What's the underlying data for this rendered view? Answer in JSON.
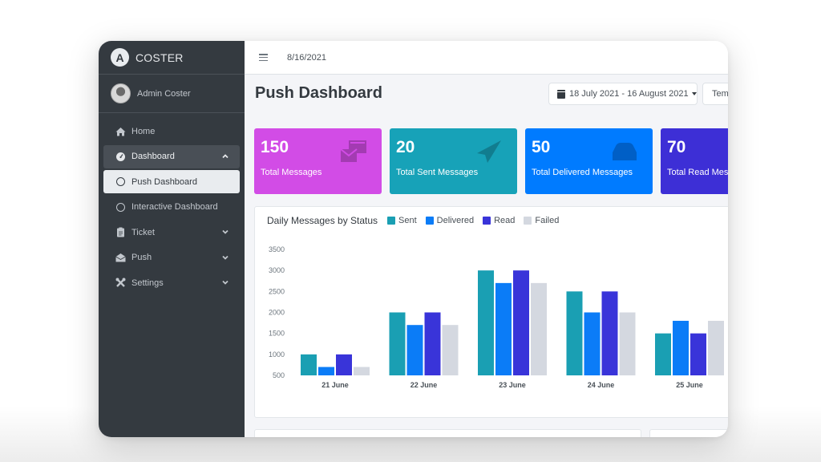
{
  "app": {
    "brand": "COSTER",
    "brand_logo_letter": "A"
  },
  "sidebar": {
    "user_name": "Admin Coster",
    "items": [
      {
        "label": "Home",
        "icon": "home-icon"
      },
      {
        "label": "Dashboard",
        "icon": "dashboard-gauge-icon",
        "expanded": true
      },
      {
        "label": "Push Dashboard",
        "icon": "circle-icon",
        "active": true
      },
      {
        "label": "Interactive Dashboard",
        "icon": "circle-icon"
      },
      {
        "label": "Ticket",
        "icon": "clipboard-icon"
      },
      {
        "label": "Push",
        "icon": "envelope-open-icon"
      },
      {
        "label": "Settings",
        "icon": "tools-icon"
      }
    ]
  },
  "topbar": {
    "date": "8/16/2021",
    "menu_icon": "hamburger-icon"
  },
  "header": {
    "title": "Push Dashboard",
    "date_range": "18 July 2021 - 16 August 2021",
    "template_select": "Tem"
  },
  "cards": [
    {
      "value": "150",
      "label": "Total Messages",
      "color": "#d24ce6",
      "icon": "envelopes-icon"
    },
    {
      "value": "20",
      "label": "Total Sent Messages",
      "color": "#17a2b8",
      "icon": "paper-plane-icon"
    },
    {
      "value": "50",
      "label": "Total Delivered Messages",
      "color": "#007bff",
      "icon": "inbox-icon"
    },
    {
      "value": "70",
      "label": "Total Read Mess",
      "color": "#3d2fd6",
      "icon": "envelope-icon"
    }
  ],
  "chart_data": {
    "type": "bar",
    "title": "Daily Messages by Status",
    "categories": [
      "21 June",
      "22 June",
      "23 June",
      "24 June",
      "25 June"
    ],
    "series": [
      {
        "name": "Sent",
        "color": "#1a9fb3",
        "values": [
          1000,
          2000,
          3000,
          2500,
          1500
        ]
      },
      {
        "name": "Delivered",
        "color": "#0b7cf7",
        "values": [
          700,
          1700,
          2700,
          2000,
          1800
        ]
      },
      {
        "name": "Read",
        "color": "#3934d9",
        "values": [
          1000,
          2000,
          3000,
          2500,
          1500
        ]
      },
      {
        "name": "Failed",
        "color": "#d4d8e0",
        "values": [
          700,
          1700,
          2700,
          2000,
          1800
        ]
      }
    ],
    "yticks": [
      "3500",
      "3000",
      "2500",
      "2000",
      "1500",
      "1000",
      "500"
    ],
    "ylim": [
      500,
      3500
    ],
    "xlabel": "",
    "ylabel": "",
    "legend": "top",
    "grid": false
  }
}
